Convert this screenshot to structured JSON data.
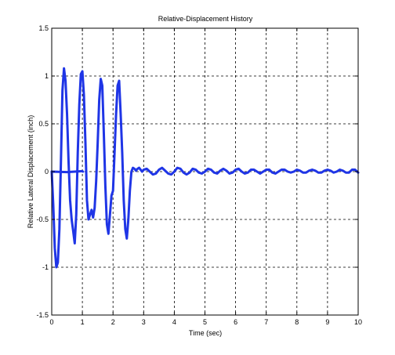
{
  "chart_data": {
    "type": "line",
    "title": "Relative-Displacement History",
    "xlabel": "Time (sec)",
    "ylabel": "Relative Lateral Displacement (inch)",
    "xlim": [
      0,
      10
    ],
    "ylim": [
      -1.5,
      1.5
    ],
    "xticks": [
      "0",
      "1",
      "2",
      "3",
      "4",
      "5",
      "6",
      "7",
      "8",
      "9",
      "10"
    ],
    "yticks": [
      "-1.5",
      "-1",
      "-0.5",
      "0",
      "0.5",
      "1",
      "1.5"
    ],
    "grid": true,
    "line_color": "#1f35e6",
    "series": [
      {
        "x": [
          0,
          0.05,
          0.1,
          0.15,
          0.2,
          0.25,
          0.3,
          0.35,
          0.4,
          0.45,
          0.5,
          0.55,
          0.6,
          0.65,
          0.7,
          0.75,
          0.8,
          0.85,
          0.9,
          0.95,
          1.0,
          1.05,
          1.1,
          1.15,
          1.2,
          1.25,
          1.3,
          1.35,
          1.4,
          1.45,
          1.5,
          1.55,
          1.6,
          1.65,
          1.7,
          1.75,
          1.8,
          1.85,
          1.9,
          1.95,
          2.0,
          2.05,
          2.1,
          2.15,
          2.2,
          2.25,
          2.3,
          2.35,
          2.4,
          2.45,
          2.5,
          2.55,
          2.6,
          2.65,
          2.7,
          2.75,
          2.8,
          2.85,
          2.9,
          2.95,
          3.0,
          3.1,
          3.2,
          3.3,
          3.4,
          3.5,
          3.6,
          3.7,
          3.8,
          3.9,
          4.0,
          4.1,
          4.2,
          4.3,
          4.4,
          4.5,
          4.6,
          4.7,
          4.8,
          4.9,
          5.0,
          5.1,
          5.2,
          5.3,
          5.4,
          5.5,
          5.6,
          5.7,
          5.8,
          5.9,
          6.0,
          6.1,
          6.2,
          6.3,
          6.4,
          6.5,
          6.6,
          6.7,
          6.8,
          6.9,
          7.0,
          7.1,
          7.2,
          7.3,
          7.4,
          7.5,
          7.6,
          7.7,
          7.8,
          7.9,
          8.0,
          8.1,
          8.2,
          8.3,
          8.4,
          8.5,
          8.6,
          8.7,
          8.8,
          8.9,
          9.0,
          9.1,
          9.2,
          9.3,
          9.4,
          9.5,
          9.6,
          9.7,
          9.8,
          9.9,
          10.0
        ],
        "y": [
          0,
          -0.35,
          -0.8,
          -1.0,
          -0.95,
          -0.6,
          0.1,
          0.85,
          1.08,
          0.95,
          0.6,
          0.1,
          -0.3,
          -0.5,
          -0.62,
          -0.75,
          -0.45,
          0.2,
          0.7,
          1.02,
          1.05,
          0.8,
          0.3,
          -0.3,
          -0.5,
          -0.45,
          -0.4,
          -0.48,
          -0.38,
          -0.1,
          0.3,
          0.75,
          0.97,
          0.9,
          0.4,
          -0.15,
          -0.55,
          -0.65,
          -0.45,
          -0.25,
          -0.2,
          0.2,
          0.6,
          0.9,
          0.95,
          0.6,
          0.2,
          -0.3,
          -0.6,
          -0.7,
          -0.5,
          -0.2,
          0.0,
          0.04,
          0.03,
          0.01,
          0.03,
          0.04,
          0.02,
          0.0,
          0.02,
          0.03,
          0.0,
          -0.03,
          -0.02,
          0.02,
          0.04,
          0.01,
          -0.02,
          -0.03,
          0.0,
          0.04,
          0.03,
          -0.01,
          -0.03,
          -0.01,
          0.03,
          0.02,
          -0.01,
          -0.02,
          0.0,
          0.03,
          0.02,
          -0.01,
          -0.02,
          0.01,
          0.03,
          0.01,
          -0.02,
          -0.01,
          0.02,
          0.03,
          0.0,
          -0.02,
          -0.01,
          0.02,
          0.02,
          0.0,
          -0.02,
          0.0,
          0.02,
          0.02,
          -0.01,
          -0.02,
          0.0,
          0.02,
          0.02,
          0.0,
          -0.01,
          0.0,
          0.02,
          0.01,
          -0.01,
          -0.01,
          0.01,
          0.02,
          0.01,
          -0.01,
          -0.01,
          0.01,
          0.02,
          0.01,
          -0.01,
          0.0,
          0.02,
          0.01,
          -0.01,
          -0.01,
          0.02,
          0.02,
          -0.01
        ]
      },
      {
        "x": [
          0,
          0.5,
          1.0,
          1.02
        ],
        "y": [
          0,
          -0.005,
          0.005,
          0
        ]
      }
    ]
  }
}
